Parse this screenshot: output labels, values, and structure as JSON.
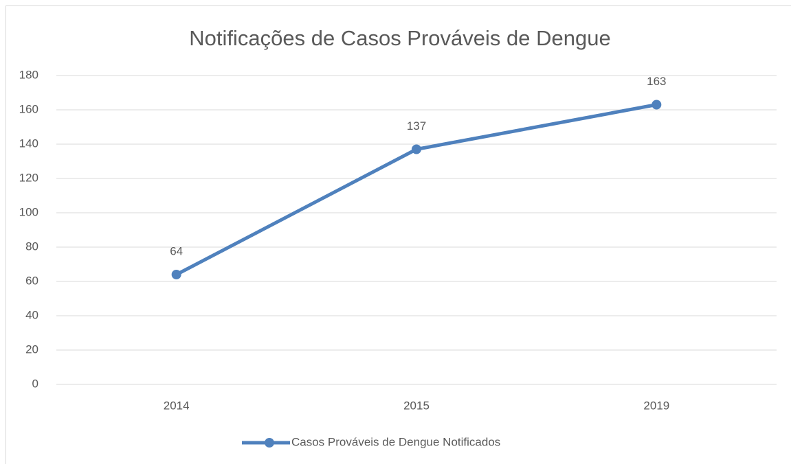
{
  "chart_data": {
    "type": "line",
    "title": "Notificações de Casos Prováveis de Dengue",
    "categories": [
      "2014",
      "2015",
      "2019"
    ],
    "series": [
      {
        "name": "Casos Prováveis de Dengue Notificados",
        "color": "#4f81bd",
        "values": [
          64,
          137,
          163
        ]
      }
    ],
    "ylim": [
      0,
      180
    ],
    "yticks": [
      0,
      20,
      40,
      60,
      80,
      100,
      120,
      140,
      160,
      180
    ],
    "grid": true,
    "legend": "bottom",
    "data_labels": true
  }
}
